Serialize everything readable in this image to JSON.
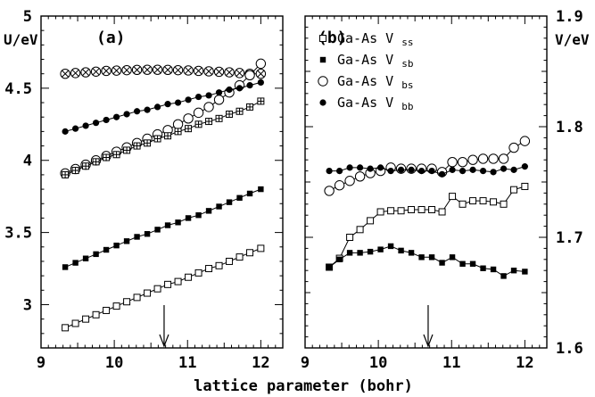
{
  "xlabel": "lattice parameter (bohr)",
  "chart_data": [
    {
      "panel": "(a)",
      "type": "line",
      "ylabel": "U/eV",
      "xlim": [
        9,
        12.3
      ],
      "ylim": [
        2.7,
        5.0
      ],
      "xticks": [
        "9",
        "10",
        "11",
        "12"
      ],
      "yticks": [
        "3",
        "3.5",
        "4",
        "4.5",
        "5"
      ],
      "arrow_x": 10.68,
      "series": [
        {
          "marker": "crossed-circle",
          "x": [
            9.33,
            9.47,
            9.61,
            9.75,
            9.89,
            10.03,
            10.17,
            10.31,
            10.45,
            10.59,
            10.73,
            10.87,
            11.01,
            11.15,
            11.29,
            11.43,
            11.57,
            11.71,
            11.85,
            12.0
          ],
          "y": [
            4.6,
            4.605,
            4.61,
            4.615,
            4.62,
            4.622,
            4.625,
            4.627,
            4.628,
            4.628,
            4.627,
            4.625,
            4.623,
            4.62,
            4.617,
            4.614,
            4.61,
            4.605,
            4.6,
            4.6
          ]
        },
        {
          "marker": "open-circle",
          "x": [
            9.33,
            9.47,
            9.61,
            9.75,
            9.89,
            10.03,
            10.17,
            10.31,
            10.45,
            10.59,
            10.73,
            10.87,
            11.01,
            11.15,
            11.29,
            11.43,
            11.57,
            11.71,
            11.85,
            12.0
          ],
          "y": [
            3.91,
            3.94,
            3.97,
            4.0,
            4.03,
            4.06,
            4.09,
            4.12,
            4.15,
            4.18,
            4.21,
            4.25,
            4.29,
            4.33,
            4.37,
            4.42,
            4.47,
            4.52,
            4.59,
            4.67
          ]
        },
        {
          "marker": "filled-circle",
          "x": [
            9.33,
            9.47,
            9.61,
            9.75,
            9.89,
            10.03,
            10.17,
            10.31,
            10.45,
            10.59,
            10.73,
            10.87,
            11.01,
            11.15,
            11.29,
            11.43,
            11.57,
            11.71,
            11.85,
            12.0
          ],
          "y": [
            4.2,
            4.22,
            4.24,
            4.26,
            4.28,
            4.3,
            4.32,
            4.34,
            4.35,
            4.37,
            4.39,
            4.4,
            4.42,
            4.44,
            4.45,
            4.47,
            4.49,
            4.5,
            4.52,
            4.54
          ]
        },
        {
          "marker": "crossed-square",
          "x": [
            9.33,
            9.47,
            9.61,
            9.75,
            9.89,
            10.03,
            10.17,
            10.31,
            10.45,
            10.59,
            10.73,
            10.87,
            11.01,
            11.15,
            11.29,
            11.43,
            11.57,
            11.71,
            11.85,
            12.0
          ],
          "y": [
            3.9,
            3.93,
            3.96,
            3.99,
            4.02,
            4.04,
            4.07,
            4.1,
            4.12,
            4.15,
            4.17,
            4.2,
            4.22,
            4.25,
            4.27,
            4.29,
            4.32,
            4.34,
            4.37,
            4.41
          ]
        },
        {
          "marker": "filled-square",
          "x": [
            9.33,
            9.47,
            9.61,
            9.75,
            9.89,
            10.03,
            10.17,
            10.31,
            10.45,
            10.59,
            10.73,
            10.87,
            11.01,
            11.15,
            11.29,
            11.43,
            11.57,
            11.71,
            11.85,
            12.0
          ],
          "y": [
            3.26,
            3.29,
            3.32,
            3.35,
            3.38,
            3.41,
            3.44,
            3.47,
            3.49,
            3.52,
            3.55,
            3.57,
            3.6,
            3.62,
            3.65,
            3.68,
            3.71,
            3.74,
            3.77,
            3.8
          ]
        },
        {
          "marker": "open-square",
          "x": [
            9.33,
            9.47,
            9.61,
            9.75,
            9.89,
            10.03,
            10.17,
            10.31,
            10.45,
            10.59,
            10.73,
            10.87,
            11.01,
            11.15,
            11.29,
            11.43,
            11.57,
            11.71,
            11.85,
            12.0
          ],
          "y": [
            2.84,
            2.87,
            2.9,
            2.93,
            2.96,
            2.99,
            3.02,
            3.05,
            3.08,
            3.11,
            3.14,
            3.16,
            3.19,
            3.22,
            3.25,
            3.27,
            3.3,
            3.33,
            3.36,
            3.39
          ]
        }
      ]
    },
    {
      "panel": "(b)",
      "type": "line",
      "ylabel": "V/eV",
      "xlim": [
        9,
        12.3
      ],
      "ylim": [
        1.6,
        1.9
      ],
      "xticks": [
        "9",
        "10",
        "11",
        "12"
      ],
      "yticks": [
        "1.6",
        "1.7",
        "1.8",
        "1.9"
      ],
      "arrow_x": 10.68,
      "legend_placement": "top-left",
      "series": [
        {
          "name": "Ga-As V",
          "sub": "ss",
          "marker": "open-square",
          "x": [
            9.33,
            9.47,
            9.61,
            9.75,
            9.89,
            10.03,
            10.17,
            10.31,
            10.45,
            10.59,
            10.73,
            10.87,
            11.01,
            11.15,
            11.29,
            11.43,
            11.57,
            11.71,
            11.85,
            12.0
          ],
          "y": [
            1.673,
            1.681,
            1.7,
            1.707,
            1.715,
            1.723,
            1.724,
            1.724,
            1.725,
            1.725,
            1.725,
            1.723,
            1.737,
            1.73,
            1.733,
            1.733,
            1.732,
            1.73,
            1.743,
            1.746
          ]
        },
        {
          "name": "Ga-As V",
          "sub": "sb",
          "marker": "filled-square",
          "x": [
            9.33,
            9.47,
            9.61,
            9.75,
            9.89,
            10.03,
            10.17,
            10.31,
            10.45,
            10.59,
            10.73,
            10.87,
            11.01,
            11.15,
            11.29,
            11.43,
            11.57,
            11.71,
            11.85,
            12.0
          ],
          "y": [
            1.673,
            1.68,
            1.686,
            1.686,
            1.687,
            1.689,
            1.692,
            1.688,
            1.686,
            1.682,
            1.682,
            1.677,
            1.682,
            1.676,
            1.676,
            1.672,
            1.671,
            1.665,
            1.67,
            1.669
          ]
        },
        {
          "name": "Ga-As V",
          "sub": "bs",
          "marker": "open-circle",
          "x": [
            9.33,
            9.47,
            9.61,
            9.75,
            9.89,
            10.03,
            10.17,
            10.31,
            10.45,
            10.59,
            10.73,
            10.87,
            11.01,
            11.15,
            11.29,
            11.43,
            11.57,
            11.71,
            11.85,
            12.0
          ],
          "y": [
            1.742,
            1.747,
            1.751,
            1.755,
            1.758,
            1.76,
            1.763,
            1.762,
            1.762,
            1.762,
            1.762,
            1.759,
            1.768,
            1.768,
            1.77,
            1.771,
            1.771,
            1.771,
            1.781,
            1.787
          ]
        },
        {
          "name": "Ga-As V",
          "sub": "bb",
          "marker": "filled-circle",
          "x": [
            9.33,
            9.47,
            9.61,
            9.75,
            9.89,
            10.03,
            10.17,
            10.31,
            10.45,
            10.59,
            10.73,
            10.87,
            11.01,
            11.15,
            11.29,
            11.43,
            11.57,
            11.71,
            11.85,
            12.0
          ],
          "y": [
            1.76,
            1.76,
            1.763,
            1.763,
            1.762,
            1.763,
            1.76,
            1.761,
            1.761,
            1.76,
            1.76,
            1.757,
            1.761,
            1.76,
            1.761,
            1.76,
            1.759,
            1.762,
            1.761,
            1.764
          ]
        }
      ]
    }
  ]
}
